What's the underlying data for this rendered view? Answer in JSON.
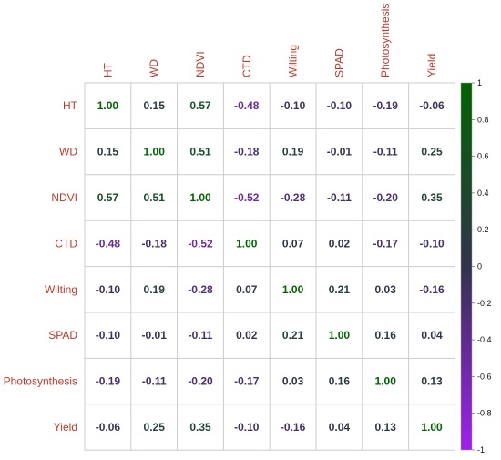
{
  "chart_data": {
    "type": "heatmap",
    "variables": [
      "HT",
      "WD",
      "NDVI",
      "CTD",
      "Wilting",
      "SPAD",
      "Photosynthesis",
      "Yield"
    ],
    "matrix": [
      [
        1.0,
        0.15,
        0.57,
        -0.48,
        -0.1,
        -0.1,
        -0.19,
        -0.06
      ],
      [
        0.15,
        1.0,
        0.51,
        -0.18,
        0.19,
        -0.01,
        -0.11,
        0.25
      ],
      [
        0.57,
        0.51,
        1.0,
        -0.52,
        -0.28,
        -0.11,
        -0.2,
        0.35
      ],
      [
        -0.48,
        -0.18,
        -0.52,
        1.0,
        0.07,
        0.02,
        -0.17,
        -0.1
      ],
      [
        -0.1,
        0.19,
        -0.28,
        0.07,
        1.0,
        0.21,
        0.03,
        -0.16
      ],
      [
        -0.1,
        -0.01,
        -0.11,
        0.02,
        0.21,
        1.0,
        0.16,
        0.04
      ],
      [
        -0.19,
        -0.11,
        -0.2,
        -0.17,
        0.03,
        0.16,
        1.0,
        0.13
      ],
      [
        -0.06,
        0.25,
        0.35,
        -0.1,
        -0.16,
        0.04,
        0.13,
        1.0
      ]
    ],
    "value_range": [
      -1,
      1
    ],
    "colorbar": {
      "ticks": [
        "1",
        "0.8",
        "0.6",
        "0.4",
        "0.2",
        "0",
        "-0.2",
        "-0.4",
        "-0.6",
        "-0.8",
        "-1"
      ],
      "colors": {
        "high": "#006400",
        "mid": "#33334d",
        "low": "#a020f0"
      }
    },
    "label_color": "#c0392b",
    "grid_color": "#cccccc",
    "grid": true,
    "legend_placement": "right"
  }
}
